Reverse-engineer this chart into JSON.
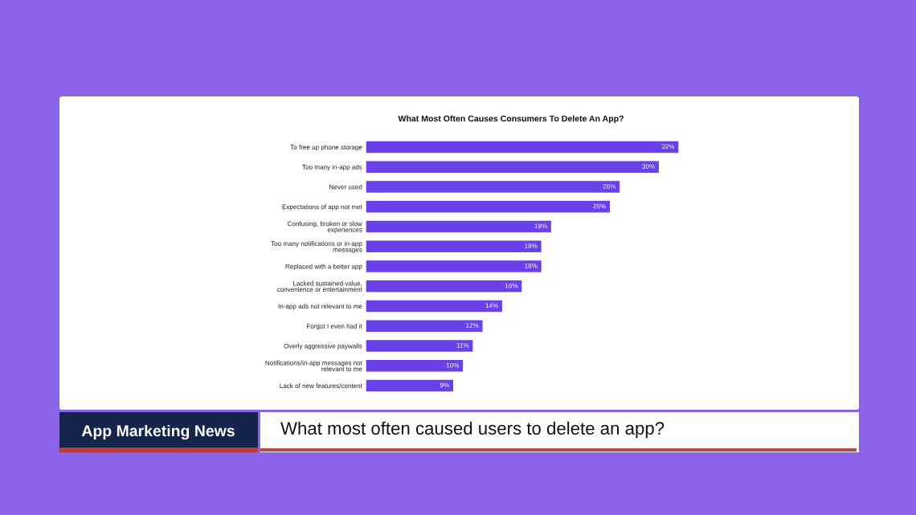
{
  "chart_data": {
    "type": "bar",
    "orientation": "horizontal",
    "title": "What Most Often Causes Consumers To Delete An App?",
    "categories": [
      "To free up phone storage",
      "Too many in-app ads",
      "Never used",
      "Expectations of app not met",
      "Confusing, broken or slow\nexperiences",
      "Too many notifications or in-app\nmessages",
      "Replaced with a better app",
      "Lacked sustained value,\nconvenience or entertainment",
      "In-app ads not relevant to me",
      "Forgot I even had it",
      "Overly aggressive paywalls",
      "Notifications/in-app messages not\nrelevant to me",
      "Lack of new features/content"
    ],
    "values": [
      32,
      30,
      26,
      25,
      19,
      18,
      18,
      16,
      14,
      12,
      11,
      10,
      9
    ],
    "value_labels": [
      "32%",
      "30%",
      "26%",
      "25%",
      "19%",
      "18%",
      "18%",
      "16%",
      "14%",
      "12%",
      "11%",
      "10%",
      "9%"
    ],
    "color": "#6a40e8",
    "tick_labels": "y",
    "grid": false,
    "legend": false,
    "annotations": [
      "App Marketing News",
      "What most often caused users to delete an app?"
    ]
  }
}
